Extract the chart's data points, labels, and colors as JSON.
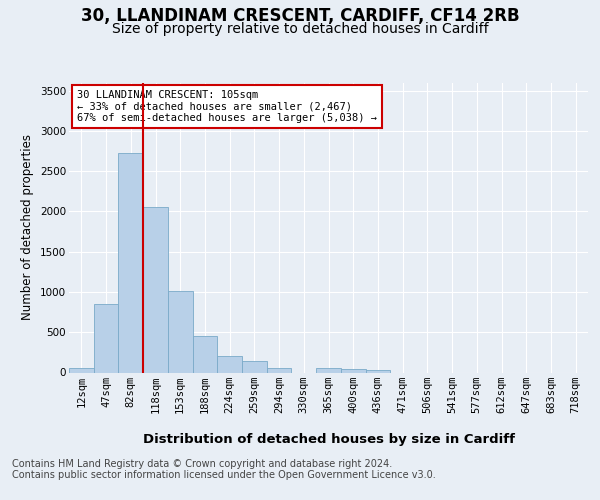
{
  "title_line1": "30, LLANDINAM CRESCENT, CARDIFF, CF14 2RB",
  "title_line2": "Size of property relative to detached houses in Cardiff",
  "xlabel": "Distribution of detached houses by size in Cardiff",
  "ylabel": "Number of detached properties",
  "categories": [
    "12sqm",
    "47sqm",
    "82sqm",
    "118sqm",
    "153sqm",
    "188sqm",
    "224sqm",
    "259sqm",
    "294sqm",
    "330sqm",
    "365sqm",
    "400sqm",
    "436sqm",
    "471sqm",
    "506sqm",
    "541sqm",
    "577sqm",
    "612sqm",
    "647sqm",
    "683sqm",
    "718sqm"
  ],
  "values": [
    55,
    855,
    2720,
    2060,
    1010,
    455,
    205,
    145,
    60,
    0,
    50,
    45,
    30,
    0,
    0,
    0,
    0,
    0,
    0,
    0,
    0
  ],
  "bar_color": "#b8d0e8",
  "bar_edge_color": "#7aaac8",
  "vline_color": "#cc0000",
  "vline_x_index": 2,
  "annotation_text": "30 LLANDINAM CRESCENT: 105sqm\n← 33% of detached houses are smaller (2,467)\n67% of semi-detached houses are larger (5,038) →",
  "annotation_box_color": "#cc0000",
  "ylim": [
    0,
    3600
  ],
  "yticks": [
    0,
    500,
    1000,
    1500,
    2000,
    2500,
    3000,
    3500
  ],
  "bg_color": "#e8eef5",
  "plot_bg_color": "#e8eef5",
  "footer_line1": "Contains HM Land Registry data © Crown copyright and database right 2024.",
  "footer_line2": "Contains public sector information licensed under the Open Government Licence v3.0.",
  "grid_color": "#ffffff",
  "title1_fontsize": 12,
  "title2_fontsize": 10,
  "xlabel_fontsize": 9.5,
  "ylabel_fontsize": 8.5,
  "tick_fontsize": 7.5,
  "annot_fontsize": 7.5,
  "footer_fontsize": 7
}
